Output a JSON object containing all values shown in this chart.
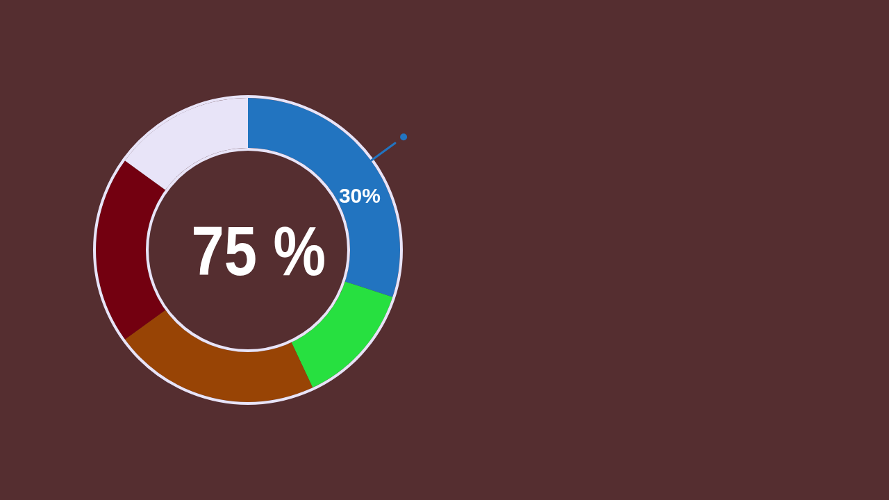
{
  "chart_data": {
    "type": "donut",
    "categories": [
      null,
      null,
      null,
      null,
      null
    ],
    "values": [
      30,
      13,
      22,
      20,
      15
    ],
    "colors": [
      "#2274c0",
      "#27e040",
      "#984405",
      "#730010",
      "#e8e4f8"
    ],
    "value_labels": [
      "30%",
      null,
      null,
      null,
      null
    ],
    "annotations": [
      "75 %"
    ]
  }
}
